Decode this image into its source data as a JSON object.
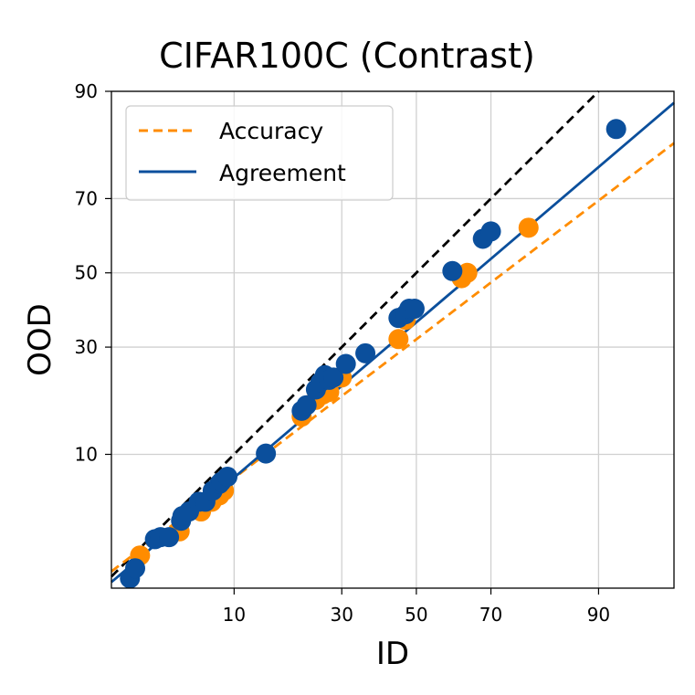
{
  "chart_data": {
    "type": "scatter",
    "title": "CIFAR100C (Contrast)",
    "xlabel": "ID",
    "ylabel": "OOD",
    "x_ticks": [
      10,
      30,
      50,
      70,
      90
    ],
    "y_ticks": [
      10,
      30,
      50,
      70,
      90
    ],
    "scale": "probit",
    "xlim": [
      1.6,
      96.5
    ],
    "ylim": [
      1.3,
      90
    ],
    "grid": true,
    "legend_position": "top-left",
    "reference_line": {
      "style": "dashed",
      "color": "#000000",
      "slope": 1,
      "intercept": 0
    },
    "series": [
      {
        "name": "Accuracy",
        "color": "#ff8c00",
        "line_style": "dashed",
        "fit": {
          "points": [
            [
              1.6,
              1.75
            ],
            [
              96.5,
              82
            ]
          ]
        },
        "points": [
          [
            2.6,
            2.3
          ],
          [
            4.8,
            3.4
          ],
          [
            6.5,
            4.6
          ],
          [
            7.5,
            5.3
          ],
          [
            8.3,
            5.8
          ],
          [
            8.8,
            6.2
          ],
          [
            21,
            15.5
          ],
          [
            24,
            18.5
          ],
          [
            25.5,
            19.5
          ],
          [
            27,
            20
          ],
          [
            30,
            23
          ],
          [
            45,
            32
          ],
          [
            47,
            37
          ],
          [
            62.5,
            48.5
          ],
          [
            64,
            50
          ],
          [
            78.5,
            62.5
          ]
        ]
      },
      {
        "name": "Agreement",
        "color": "#0b4f9c",
        "line_style": "solid",
        "fit": {
          "points": [
            [
              1.6,
              1.45
            ],
            [
              96.5,
              88.5
            ]
          ]
        },
        "points": [
          [
            2.2,
            1.55
          ],
          [
            2.4,
            1.85
          ],
          [
            3.3,
            3.0
          ],
          [
            3.6,
            3.1
          ],
          [
            4.1,
            3.1
          ],
          [
            4.9,
            4.0
          ],
          [
            5.0,
            4.3
          ],
          [
            5.5,
            4.6
          ],
          [
            6.3,
            5.3
          ],
          [
            6.9,
            5.3
          ],
          [
            7.6,
            6.2
          ],
          [
            8.3,
            6.8
          ],
          [
            8.5,
            7.0
          ],
          [
            9.2,
            7.5
          ],
          [
            14.5,
            10.1
          ],
          [
            21,
            16.5
          ],
          [
            22,
            17.5
          ],
          [
            24,
            20.5
          ],
          [
            25,
            22
          ],
          [
            26,
            23.5
          ],
          [
            27,
            22.5
          ],
          [
            28,
            23
          ],
          [
            31,
            26
          ],
          [
            36,
            28.5
          ],
          [
            45,
            37.5
          ],
          [
            47,
            38.5
          ],
          [
            48,
            40
          ],
          [
            49.5,
            40
          ],
          [
            60,
            50.5
          ],
          [
            68,
            59.5
          ],
          [
            70,
            61.5
          ],
          [
            92,
            84.5
          ]
        ]
      }
    ]
  }
}
